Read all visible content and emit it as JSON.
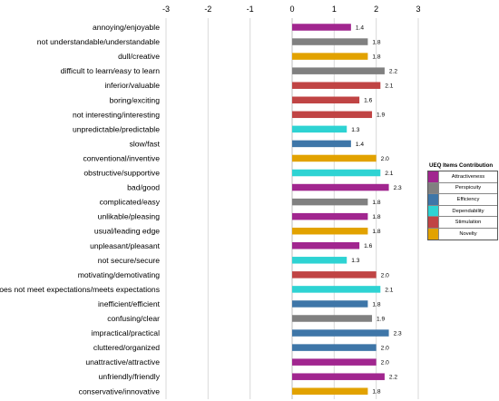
{
  "chart_data": {
    "type": "bar",
    "orientation": "horizontal",
    "xlim": [
      -3,
      3
    ],
    "xticks": [
      "-3",
      "-2",
      "-1",
      "0",
      "1",
      "2",
      "3"
    ],
    "grid": "vertical",
    "legend": {
      "title": "UEQ  Items Contribution",
      "placement": "right",
      "entries": [
        {
          "name": "Attractiveness",
          "color": "#A1268F"
        },
        {
          "name": "Perspicuity",
          "color": "#808080"
        },
        {
          "name": "Efficiency",
          "color": "#3E76A8"
        },
        {
          "name": "Dependability",
          "color": "#2ED3D3"
        },
        {
          "name": "Stimulation",
          "color": "#C04444"
        },
        {
          "name": "Novelty",
          "color": "#E2A200"
        }
      ]
    },
    "items": [
      {
        "label": "annoying/enjoyable",
        "value": 1.4,
        "display": "1.4",
        "scale": "Attractiveness"
      },
      {
        "label": "not understandable/understandable",
        "value": 1.8,
        "display": "1.8",
        "scale": "Perspicuity"
      },
      {
        "label": "dull/creative",
        "value": 1.8,
        "display": "1.8",
        "scale": "Novelty"
      },
      {
        "label": "difficult to learn/easy to learn",
        "value": 2.2,
        "display": "2.2",
        "scale": "Perspicuity"
      },
      {
        "label": "inferior/valuable",
        "value": 2.1,
        "display": "2.1",
        "scale": "Stimulation"
      },
      {
        "label": "boring/exciting",
        "value": 1.6,
        "display": "1.6",
        "scale": "Stimulation"
      },
      {
        "label": "not interesting/interesting",
        "value": 1.9,
        "display": "1.9",
        "scale": "Stimulation"
      },
      {
        "label": "unpredictable/predictable",
        "value": 1.3,
        "display": "1.3",
        "scale": "Dependability"
      },
      {
        "label": "slow/fast",
        "value": 1.4,
        "display": "1.4",
        "scale": "Efficiency"
      },
      {
        "label": "conventional/inventive",
        "value": 2.0,
        "display": "2.0",
        "scale": "Novelty"
      },
      {
        "label": "obstructive/supportive",
        "value": 2.1,
        "display": "2.1",
        "scale": "Dependability"
      },
      {
        "label": "bad/good",
        "value": 2.3,
        "display": "2.3",
        "scale": "Attractiveness"
      },
      {
        "label": "complicated/easy",
        "value": 1.8,
        "display": "1.8",
        "scale": "Perspicuity"
      },
      {
        "label": "unlikable/pleasing",
        "value": 1.8,
        "display": "1.8",
        "scale": "Attractiveness"
      },
      {
        "label": "usual/leading edge",
        "value": 1.8,
        "display": "1.8",
        "scale": "Novelty"
      },
      {
        "label": "unpleasant/pleasant",
        "value": 1.6,
        "display": "1.6",
        "scale": "Attractiveness"
      },
      {
        "label": "not secure/secure",
        "value": 1.3,
        "display": "1.3",
        "scale": "Dependability"
      },
      {
        "label": "motivating/demotivating",
        "value": 2.0,
        "display": "2.0",
        "scale": "Stimulation"
      },
      {
        "label": "does not meet expectations/meets expectations",
        "value": 2.1,
        "display": "2.1",
        "scale": "Dependability"
      },
      {
        "label": "inefficient/efficient",
        "value": 1.8,
        "display": "1.8",
        "scale": "Efficiency"
      },
      {
        "label": "confusing/clear",
        "value": 1.9,
        "display": "1.9",
        "scale": "Perspicuity"
      },
      {
        "label": "impractical/practical",
        "value": 2.3,
        "display": "2.3",
        "scale": "Efficiency"
      },
      {
        "label": "cluttered/organized",
        "value": 2.0,
        "display": "2.0",
        "scale": "Efficiency"
      },
      {
        "label": "unattractive/attractive",
        "value": 2.0,
        "display": "2.0",
        "scale": "Attractiveness"
      },
      {
        "label": "unfriendly/friendly",
        "value": 2.2,
        "display": "2.2",
        "scale": "Attractiveness"
      },
      {
        "label": "conservative/innovative",
        "value": 1.8,
        "display": "1.8",
        "scale": "Novelty"
      }
    ]
  }
}
